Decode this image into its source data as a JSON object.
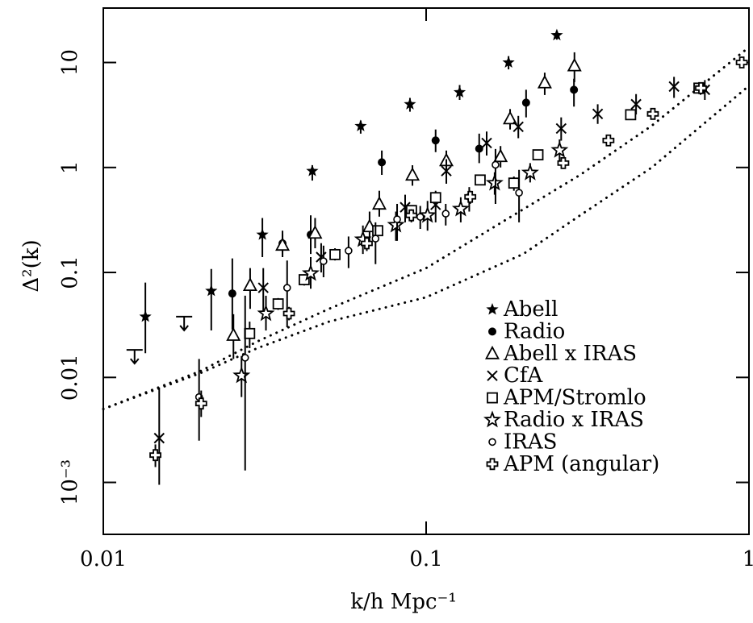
{
  "chart_data": {
    "type": "scatter",
    "xlabel": "k/h Mpc⁻¹",
    "ylabel": "Δ²(k)",
    "xlog": true,
    "ylog": true,
    "xlim": [
      0.01,
      1
    ],
    "ylim": [
      0.00032,
      33
    ],
    "xticks": [
      0.01,
      0.1,
      1
    ],
    "yticks": [
      {
        "value": 0.001,
        "label": "10⁻³"
      },
      0.01,
      0.1,
      1,
      10
    ],
    "legend": "lower right",
    "series": [
      {
        "name": "Abell",
        "color": "#000000",
        "marker": "star-filled",
        "x": [
          0.0135,
          0.0216,
          0.0311,
          0.0444,
          0.0627,
          0.0891,
          0.127,
          0.18,
          0.254
        ],
        "values": [
          0.0379,
          0.0667,
          0.229,
          0.925,
          2.48,
          4.0,
          5.2,
          10,
          18.2
        ],
        "lower": [
          0.017,
          0.028,
          0.14,
          0.75,
          2.1,
          3.4,
          4.4,
          8.6,
          16.5
        ],
        "upper": [
          0.08,
          0.108,
          0.33,
          1.05,
          2.8,
          4.6,
          6.1,
          11.5,
          20
        ]
      },
      {
        "name": "Radio",
        "color": "#000000",
        "marker": "circle-filled",
        "x": [
          0.0251,
          0.0359,
          0.0439,
          0.0729,
          0.107,
          0.146,
          0.204,
          0.287
        ],
        "values": [
          0.063,
          0.189,
          0.229,
          1.12,
          1.81,
          1.51,
          4.14,
          5.5
        ],
        "lower": [
          0.0286,
          0.14,
          0.15,
          0.85,
          1.4,
          1.1,
          3.0,
          3.8
        ],
        "upper": [
          0.136,
          0.25,
          0.35,
          1.45,
          2.3,
          2.1,
          5.5,
          7.0
        ]
      },
      {
        "name": "Abell x IRAS",
        "color": "#000000",
        "marker": "triangle",
        "x": [
          0.0253,
          0.0285,
          0.0359,
          0.0453,
          0.0668,
          0.0716,
          0.0907,
          0.1155,
          0.17,
          0.182,
          0.233,
          0.288
        ],
        "values": [
          0.0252,
          0.0753,
          0.182,
          0.237,
          0.273,
          0.448,
          0.846,
          1.16,
          1.27,
          2.91,
          6.4,
          9.3
        ],
        "lower": [
          0.015,
          0.045,
          0.14,
          0.17,
          0.19,
          0.34,
          0.67,
          0.95,
          1.0,
          2.3,
          4.9,
          6.5
        ],
        "upper": [
          0.04,
          0.11,
          0.23,
          0.33,
          0.38,
          0.6,
          1.05,
          1.45,
          1.6,
          3.6,
          8.0,
          12.5
        ]
      },
      {
        "name": "CfA",
        "color": "#000000",
        "marker": "x",
        "x": [
          0.0149,
          0.0313,
          0.0473,
          0.0861,
          0.107,
          0.1155,
          0.154,
          0.193,
          0.262,
          0.34,
          0.447,
          0.586,
          0.73
        ],
        "values": [
          0.00264,
          0.0714,
          0.14,
          0.418,
          0.441,
          0.925,
          1.71,
          2.44,
          2.35,
          3.24,
          4.0,
          5.9,
          5.5
        ],
        "lower": [
          0.00095,
          0.037,
          0.1,
          0.3,
          0.3,
          0.7,
          1.3,
          1.9,
          1.8,
          2.6,
          3.2,
          4.6,
          4.4
        ],
        "upper": [
          0.008,
          0.11,
          0.19,
          0.55,
          0.6,
          1.2,
          2.2,
          3.1,
          3.0,
          4.0,
          5.0,
          7.3,
          6.8
        ]
      },
      {
        "name": "APM/Stromlo",
        "color": "#000000",
        "marker": "square",
        "x": [
          0.0284,
          0.0348,
          0.0419,
          0.0522,
          0.0708,
          0.0901,
          0.107,
          0.147,
          0.187,
          0.222,
          0.43,
          0.7
        ],
        "values": [
          0.0262,
          0.0502,
          0.0853,
          0.148,
          0.25,
          0.389,
          0.516,
          0.76,
          0.71,
          1.32,
          3.18,
          5.7
        ],
        "lower": [
          0.019,
          0.044,
          0.075,
          0.13,
          0.22,
          0.35,
          0.47,
          0.7,
          0.6,
          1.22,
          2.95,
          5.3
        ],
        "upper": [
          0.034,
          0.057,
          0.096,
          0.17,
          0.28,
          0.43,
          0.56,
          0.83,
          0.82,
          1.42,
          3.4,
          6.1
        ]
      },
      {
        "name": "Radio x IRAS",
        "color": "#000000",
        "marker": "star",
        "x": [
          0.0268,
          0.0319,
          0.0439,
          0.0637,
          0.0806,
          0.101,
          0.128,
          0.163,
          0.21,
          0.259
        ],
        "values": [
          0.0104,
          0.0406,
          0.098,
          0.206,
          0.283,
          0.35,
          0.403,
          0.71,
          0.89,
          1.46
        ],
        "lower": [
          0.0065,
          0.028,
          0.07,
          0.15,
          0.2,
          0.25,
          0.3,
          0.55,
          0.72,
          1.15
        ],
        "upper": [
          0.016,
          0.06,
          0.14,
          0.28,
          0.38,
          0.48,
          0.52,
          0.9,
          1.1,
          1.85
        ]
      },
      {
        "name": "IRAS",
        "color": "#000000",
        "marker": "circle",
        "x": [
          0.0198,
          0.0275,
          0.0371,
          0.0481,
          0.0575,
          0.0697,
          0.0813,
          0.0959,
          0.115,
          0.136,
          0.164,
          0.194
        ],
        "values": [
          0.0065,
          0.0154,
          0.0714,
          0.128,
          0.161,
          0.21,
          0.321,
          0.338,
          0.363,
          0.525,
          1.06,
          0.574
        ],
        "lower": [
          0.0025,
          0.0013,
          0.03,
          0.09,
          0.11,
          0.12,
          0.2,
          0.26,
          0.28,
          0.38,
          0.45,
          0.3
        ],
        "upper": [
          0.015,
          0.06,
          0.13,
          0.18,
          0.22,
          0.3,
          0.45,
          0.43,
          0.45,
          0.65,
          1.5,
          0.95
        ]
      },
      {
        "name": "APM (angular)",
        "color": "#000000",
        "marker": "plus",
        "x": [
          0.0145,
          0.0201,
          0.0376,
          0.0655,
          0.09,
          0.137,
          0.266,
          0.367,
          0.504,
          0.71,
          0.95
        ],
        "values": [
          0.00182,
          0.00564,
          0.0406,
          0.189,
          0.35,
          0.525,
          1.1,
          1.81,
          3.24,
          5.7,
          10
        ],
        "lower": [
          0.0014,
          0.0042,
          0.035,
          0.16,
          0.3,
          0.45,
          0.98,
          1.65,
          3.0,
          5.3,
          9.3
        ],
        "upper": [
          0.0023,
          0.0075,
          0.047,
          0.22,
          0.4,
          0.6,
          1.22,
          1.98,
          3.5,
          6.1,
          10.8
        ]
      }
    ],
    "upper_limits": {
      "color": "#000000",
      "x": [
        0.0125,
        0.0178
      ],
      "values": [
        0.0183,
        0.0379
      ]
    },
    "curves": [
      {
        "color": "#000000",
        "x": [
          0.01,
          0.02,
          0.03,
          0.05,
          0.1,
          0.2,
          0.3,
          0.5,
          1
        ],
        "values": [
          0.005,
          0.0115,
          0.022,
          0.045,
          0.11,
          0.4,
          0.85,
          2.5,
          14
        ]
      },
      {
        "color": "#000000",
        "x": [
          0.01,
          0.02,
          0.03,
          0.05,
          0.1,
          0.2,
          0.3,
          0.5,
          1
        ],
        "values": [
          0.005,
          0.011,
          0.019,
          0.034,
          0.058,
          0.15,
          0.35,
          1.0,
          6
        ]
      }
    ]
  }
}
